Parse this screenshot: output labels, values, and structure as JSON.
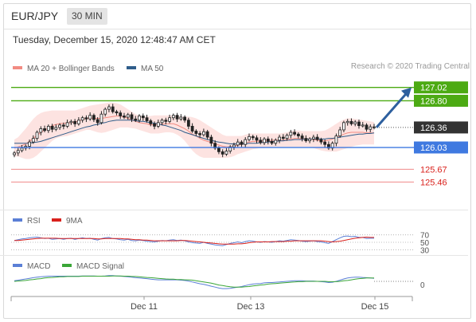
{
  "header": {
    "symbol": "EUR/JPY",
    "timeframe": "30 MIN"
  },
  "datetime": "Tuesday, December 15, 2020 12:48:47 AM CET",
  "copyright": "Research © 2020 Trading Central",
  "legends": {
    "ma20": {
      "label": "MA 20 + Bollinger Bands",
      "color": "#f28b82"
    },
    "ma50": {
      "label": "MA 50",
      "color": "#2f5d8a"
    },
    "rsi": {
      "label": "RSI",
      "color": "#5b7fd6"
    },
    "rsi9": {
      "label": "9MA",
      "color": "#d9211c"
    },
    "macd": {
      "label": "MACD",
      "color": "#5b7fd6"
    },
    "macd_signal": {
      "label": "MACD Signal",
      "color": "#3aa637"
    }
  },
  "chart_data": {
    "type": "candlestick",
    "ylim": [
      125.36,
      127.2
    ],
    "x_ticks": [
      "Dec 11",
      "Dec 13",
      "Dec 15"
    ],
    "closes": [
      125.94,
      125.98,
      126.02,
      126.05,
      126.12,
      126.18,
      126.28,
      126.34,
      126.31,
      126.38,
      126.33,
      126.36,
      126.4,
      126.38,
      126.44,
      126.46,
      126.42,
      126.48,
      126.52,
      126.5,
      126.56,
      126.49,
      126.44,
      126.58,
      126.66,
      126.7,
      126.62,
      126.6,
      126.55,
      126.53,
      126.57,
      126.5,
      126.48,
      126.55,
      126.52,
      126.47,
      126.42,
      126.38,
      126.44,
      126.48,
      126.46,
      126.52,
      126.56,
      126.5,
      126.53,
      126.48,
      126.38,
      126.3,
      126.26,
      126.24,
      126.29,
      126.2,
      126.1,
      126.02,
      125.96,
      125.92,
      125.97,
      126.04,
      126.07,
      126.12,
      126.08,
      126.16,
      126.21,
      126.19,
      126.15,
      126.11,
      126.17,
      126.13,
      126.1,
      126.15,
      126.2,
      126.18,
      126.23,
      126.28,
      126.25,
      126.22,
      126.18,
      126.14,
      126.17,
      126.2,
      126.16,
      126.12,
      126.08,
      126.02,
      126.1,
      126.22,
      126.32,
      126.44,
      126.46,
      126.42,
      126.45,
      126.39,
      126.4,
      126.33,
      126.37,
      126.36
    ],
    "bands": {
      "upper": [
        126.16,
        126.2,
        126.27,
        126.34,
        126.42,
        126.5,
        126.56,
        126.6,
        126.62,
        126.63,
        126.64,
        126.64,
        126.64,
        126.64,
        126.64,
        126.64,
        126.64,
        126.66,
        126.68,
        126.7,
        126.72,
        126.73,
        126.74,
        126.75,
        126.76,
        126.77,
        126.77,
        126.76,
        126.74,
        126.7,
        126.66,
        126.62,
        126.58,
        126.56,
        126.55,
        126.55,
        126.55,
        126.56,
        126.56,
        126.56,
        126.56,
        126.56,
        126.56,
        126.56,
        126.54,
        126.54,
        126.54,
        126.53,
        126.51,
        126.48,
        126.44,
        126.4,
        126.36,
        126.32,
        126.28,
        126.24,
        126.22,
        126.22,
        126.22,
        126.22,
        126.22,
        126.24,
        126.26,
        126.26,
        126.26,
        126.26,
        126.26,
        126.26,
        126.26,
        126.26,
        126.26,
        126.27,
        126.28,
        126.3,
        126.31,
        126.31,
        126.3,
        126.3,
        126.3,
        126.3,
        126.3,
        126.3,
        126.31,
        126.34,
        126.38,
        126.42,
        126.46,
        126.49,
        126.51,
        126.51,
        126.5,
        126.49,
        126.48,
        126.47,
        126.46,
        126.45
      ],
      "lower": [
        125.88,
        125.88,
        125.86,
        125.84,
        125.84,
        125.86,
        125.9,
        125.96,
        126.02,
        126.08,
        126.14,
        126.18,
        126.2,
        126.21,
        126.22,
        126.24,
        126.26,
        126.28,
        126.3,
        126.32,
        126.32,
        126.3,
        126.28,
        126.27,
        126.28,
        126.3,
        126.32,
        126.34,
        126.36,
        126.36,
        126.36,
        126.35,
        126.34,
        126.32,
        126.3,
        126.28,
        126.26,
        126.26,
        126.26,
        126.27,
        126.28,
        126.28,
        126.27,
        126.24,
        126.2,
        126.14,
        126.06,
        125.98,
        125.92,
        125.88,
        125.86,
        125.86,
        125.86,
        125.86,
        125.86,
        125.86,
        125.86,
        125.87,
        125.89,
        125.92,
        125.94,
        125.96,
        125.98,
        126.0,
        126.01,
        126.02,
        126.02,
        126.03,
        126.04,
        126.04,
        126.04,
        126.04,
        126.04,
        126.04,
        126.04,
        126.04,
        126.04,
        126.04,
        126.04,
        126.02,
        126.0,
        125.98,
        125.97,
        125.96,
        125.96,
        125.96,
        125.98,
        126.0,
        126.02,
        126.04,
        126.06,
        126.07,
        126.08,
        126.08,
        126.08,
        126.08
      ],
      "ma20": [
        126.02,
        126.04,
        126.06,
        126.09,
        126.13,
        126.18,
        126.23,
        126.28,
        126.32,
        126.35,
        126.39,
        126.41,
        126.42,
        126.43,
        126.43,
        126.44,
        126.45,
        126.47,
        126.49,
        126.51,
        126.52,
        126.51,
        126.51,
        126.51,
        126.52,
        126.53,
        126.54,
        126.55,
        126.55,
        126.53,
        126.51,
        126.48,
        126.46,
        126.44,
        126.43,
        126.42,
        126.4,
        126.41,
        126.41,
        126.41,
        126.42,
        126.42,
        126.42,
        126.4,
        126.37,
        126.34,
        126.3,
        126.25,
        126.22,
        126.18,
        126.15,
        126.13,
        126.11,
        126.09,
        126.07,
        126.05,
        126.04,
        126.04,
        126.05,
        126.07,
        126.08,
        126.1,
        126.12,
        126.13,
        126.13,
        126.14,
        126.14,
        126.14,
        126.15,
        126.15,
        126.15,
        126.15,
        126.16,
        126.17,
        126.18,
        126.18,
        126.17,
        126.17,
        126.17,
        126.16,
        126.15,
        126.14,
        126.14,
        126.15,
        126.17,
        126.19,
        126.22,
        126.25,
        126.27,
        126.28,
        126.28,
        126.28,
        126.28,
        126.27,
        126.27,
        126.27
      ],
      "ma50": [
        126.1,
        126.1,
        126.1,
        126.1,
        126.1,
        126.11,
        126.12,
        126.13,
        126.15,
        126.17,
        126.19,
        126.21,
        126.23,
        126.25,
        126.27,
        126.29,
        126.31,
        126.33,
        126.35,
        126.37,
        126.38,
        126.4,
        126.41,
        126.43,
        126.44,
        126.46,
        126.47,
        126.48,
        126.48,
        126.48,
        126.48,
        126.48,
        126.47,
        126.46,
        126.46,
        126.45,
        126.44,
        126.43,
        126.42,
        126.4,
        126.39,
        126.37,
        126.35,
        126.33,
        126.31,
        126.28,
        126.26,
        126.24,
        126.22,
        126.2,
        126.18,
        126.16,
        126.15,
        126.13,
        126.12,
        126.11,
        126.1,
        126.09,
        126.09,
        126.09,
        126.09,
        126.09,
        126.1,
        126.1,
        126.1,
        126.11,
        126.11,
        126.12,
        126.13,
        126.13,
        126.14,
        126.14,
        126.15,
        126.15,
        126.16,
        126.16,
        126.16,
        126.17,
        126.17,
        126.17,
        126.17,
        126.17,
        126.17,
        126.18,
        126.18,
        126.19,
        126.2,
        126.21,
        126.22,
        126.23,
        126.24,
        126.25,
        126.25,
        126.26,
        126.26,
        126.27
      ]
    },
    "levels": [
      {
        "value": 127.02,
        "label": "127.02",
        "color": "#4caa13",
        "style": "solid",
        "box": "green"
      },
      {
        "value": 126.8,
        "label": "126.80",
        "color": "#4caa13",
        "style": "solid",
        "box": "green"
      },
      {
        "value": 126.36,
        "label": "126.36",
        "color": "#333333",
        "style": "dotted",
        "box": "dark"
      },
      {
        "value": 126.03,
        "label": "126.03",
        "color": "#3f79e0",
        "style": "solid",
        "box": "blue"
      },
      {
        "value": 125.67,
        "label": "125.67",
        "color": "#f08a8a",
        "style": "solid",
        "box": "none",
        "text_color": "#d9211c"
      },
      {
        "value": 125.46,
        "label": "125.46",
        "color": "#f08a8a",
        "style": "solid",
        "box": "none",
        "text_color": "#d9211c"
      }
    ],
    "target_arrow": {
      "from": 126.36,
      "to": 127.02
    },
    "rsi": {
      "levels": [
        "70",
        "50",
        "30"
      ],
      "values": [
        55,
        57,
        59,
        60,
        62,
        63,
        64,
        62,
        60,
        61,
        58,
        59,
        60,
        58,
        60,
        61,
        58,
        60,
        62,
        60,
        61,
        58,
        56,
        60,
        62,
        63,
        60,
        59,
        57,
        56,
        58,
        55,
        54,
        56,
        55,
        53,
        52,
        51,
        53,
        55,
        54,
        56,
        57,
        55,
        56,
        54,
        51,
        49,
        48,
        47,
        50,
        47,
        45,
        43,
        42,
        41,
        44,
        47,
        49,
        51,
        49,
        52,
        54,
        53,
        51,
        50,
        52,
        51,
        50,
        52,
        54,
        53,
        55,
        57,
        56,
        55,
        53,
        52,
        53,
        54,
        52,
        51,
        49,
        47,
        52,
        57,
        62,
        66,
        67,
        65,
        66,
        63,
        63,
        60,
        61,
        61
      ],
      "ma9": [
        55,
        55,
        56,
        57,
        58,
        59,
        60,
        61,
        61,
        61,
        61,
        61,
        60,
        60,
        60,
        60,
        60,
        60,
        60,
        60,
        60,
        60,
        59,
        59,
        60,
        60,
        60,
        60,
        60,
        59,
        59,
        58,
        57,
        57,
        56,
        56,
        55,
        54,
        54,
        54,
        54,
        54,
        54,
        54,
        55,
        55,
        54,
        53,
        52,
        51,
        50,
        49,
        48,
        47,
        46,
        45,
        45,
        45,
        45,
        46,
        46,
        47,
        49,
        50,
        51,
        51,
        51,
        51,
        52,
        52,
        52,
        52,
        53,
        53,
        54,
        54,
        54,
        54,
        54,
        54,
        54,
        54,
        53,
        52,
        51,
        52,
        53,
        55,
        57,
        59,
        61,
        62,
        63,
        64,
        63,
        63
      ]
    },
    "macd": {
      "zero_label": "0",
      "macd": [
        0.02,
        0.04,
        0.06,
        0.08,
        0.1,
        0.12,
        0.14,
        0.15,
        0.16,
        0.17,
        0.17,
        0.17,
        0.17,
        0.17,
        0.17,
        0.17,
        0.17,
        0.17,
        0.18,
        0.18,
        0.18,
        0.18,
        0.17,
        0.17,
        0.18,
        0.19,
        0.19,
        0.18,
        0.17,
        0.16,
        0.15,
        0.14,
        0.12,
        0.11,
        0.1,
        0.09,
        0.07,
        0.06,
        0.05,
        0.05,
        0.05,
        0.05,
        0.05,
        0.05,
        0.04,
        0.03,
        0.01,
        -0.02,
        -0.05,
        -0.08,
        -0.1,
        -0.13,
        -0.16,
        -0.19,
        -0.22,
        -0.24,
        -0.24,
        -0.23,
        -0.21,
        -0.19,
        -0.17,
        -0.14,
        -0.11,
        -0.09,
        -0.08,
        -0.07,
        -0.05,
        -0.04,
        -0.04,
        -0.03,
        -0.02,
        -0.01,
        0.0,
        0.01,
        0.02,
        0.02,
        0.02,
        0.01,
        0.01,
        0.01,
        0.0,
        -0.01,
        -0.02,
        -0.04,
        -0.03,
        0.0,
        0.04,
        0.08,
        0.11,
        0.13,
        0.14,
        0.14,
        0.13,
        0.12,
        0.11,
        0.1
      ],
      "signal": [
        0.0,
        0.01,
        0.02,
        0.03,
        0.05,
        0.06,
        0.08,
        0.09,
        0.11,
        0.12,
        0.13,
        0.14,
        0.15,
        0.15,
        0.16,
        0.16,
        0.16,
        0.16,
        0.17,
        0.17,
        0.17,
        0.17,
        0.17,
        0.17,
        0.17,
        0.17,
        0.18,
        0.18,
        0.18,
        0.17,
        0.17,
        0.16,
        0.16,
        0.15,
        0.14,
        0.13,
        0.12,
        0.11,
        0.1,
        0.09,
        0.08,
        0.07,
        0.07,
        0.06,
        0.06,
        0.05,
        0.05,
        0.04,
        0.02,
        0.0,
        -0.02,
        -0.04,
        -0.06,
        -0.09,
        -0.12,
        -0.14,
        -0.16,
        -0.18,
        -0.19,
        -0.19,
        -0.19,
        -0.18,
        -0.17,
        -0.15,
        -0.14,
        -0.12,
        -0.11,
        -0.09,
        -0.08,
        -0.07,
        -0.06,
        -0.05,
        -0.04,
        -0.03,
        -0.02,
        -0.01,
        -0.01,
        0.0,
        0.0,
        0.0,
        0.0,
        0.0,
        0.0,
        -0.01,
        -0.01,
        -0.01,
        0.0,
        0.02,
        0.03,
        0.05,
        0.07,
        0.09,
        0.1,
        0.11,
        0.11,
        0.11
      ]
    }
  }
}
